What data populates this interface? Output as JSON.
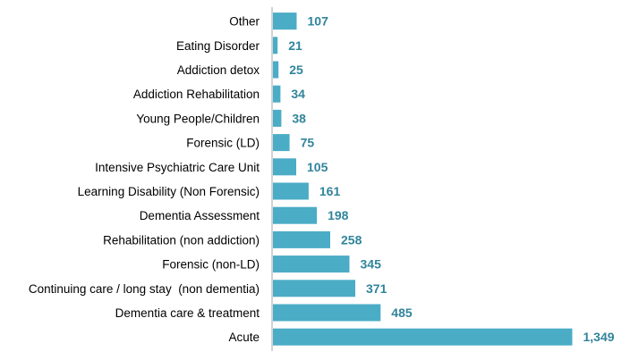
{
  "chart_data": {
    "type": "bar",
    "orientation": "horizontal",
    "title": "",
    "xlabel": "",
    "ylabel": "",
    "categories": [
      "Other",
      "Eating Disorder",
      "Addiction detox",
      "Addiction Rehabilitation",
      "Young People/Children",
      "Forensic (LD)",
      "Intensive Psychiatric Care Unit",
      "Learning Disability (Non Forensic)",
      "Dementia Assessment",
      "Rehabilitation (non addiction)",
      "Forensic (non-LD)",
      "Continuing care / long stay  (non dementia)",
      "Dementia care & treatment",
      "Acute"
    ],
    "values": [
      107,
      21,
      25,
      34,
      38,
      75,
      105,
      161,
      198,
      258,
      345,
      371,
      485,
      1349
    ],
    "value_labels": [
      "107",
      "21",
      "25",
      "34",
      "38",
      "75",
      "105",
      "161",
      "198",
      "258",
      "345",
      "371",
      "485",
      "1,349"
    ],
    "xlim": [
      0,
      1349
    ],
    "grid": false,
    "legend": "none",
    "colors": {
      "bar": "#4BACC6",
      "value_label": "#31849B",
      "axis": "#A6A6A6"
    }
  }
}
